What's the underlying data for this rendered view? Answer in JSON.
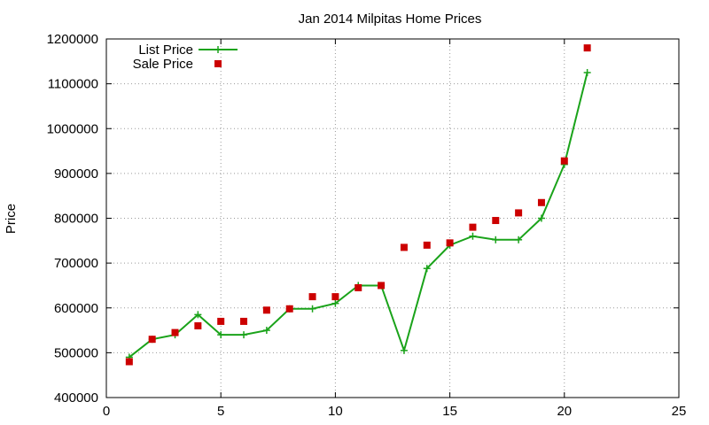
{
  "chart_data": {
    "type": "line",
    "title": "Jan 2014 Milpitas Home Prices",
    "xlabel": "",
    "ylabel": "Price",
    "xlim": [
      0,
      25
    ],
    "ylim": [
      400000,
      1200000
    ],
    "xticks": [
      0,
      5,
      10,
      15,
      20,
      25
    ],
    "yticks": [
      400000,
      500000,
      600000,
      700000,
      800000,
      900000,
      1000000,
      1100000,
      1200000
    ],
    "x_tick_labels": [
      "0",
      "5",
      "10",
      "15",
      "20",
      "25"
    ],
    "y_tick_labels": [
      "400000",
      "500000",
      "600000",
      "700000",
      "800000",
      "900000",
      "1000000",
      "1100000",
      "1200000"
    ],
    "grid": true,
    "legend_position": "top-left",
    "series": [
      {
        "name": "List Price",
        "style": "line-plus",
        "color": "#1aa31a",
        "x": [
          1,
          2,
          3,
          4,
          5,
          6,
          7,
          8,
          9,
          10,
          11,
          12,
          13,
          14,
          15,
          16,
          17,
          18,
          19,
          20,
          21
        ],
        "values": [
          490000,
          530000,
          540000,
          585000,
          540000,
          540000,
          550000,
          598000,
          598000,
          610000,
          650000,
          650000,
          505000,
          688000,
          740000,
          760000,
          752000,
          752000,
          800000,
          920000,
          1125000
        ]
      },
      {
        "name": "Sale Price",
        "style": "square-points",
        "color": "#cc0000",
        "x": [
          1,
          2,
          3,
          4,
          5,
          6,
          7,
          8,
          9,
          10,
          11,
          12,
          13,
          14,
          15,
          16,
          17,
          18,
          19,
          20,
          21
        ],
        "values": [
          480000,
          530000,
          545000,
          560000,
          570000,
          570000,
          595000,
          598000,
          625000,
          625000,
          645000,
          650000,
          735000,
          740000,
          745000,
          780000,
          795000,
          812000,
          835000,
          928000,
          1180000
        ]
      }
    ]
  }
}
